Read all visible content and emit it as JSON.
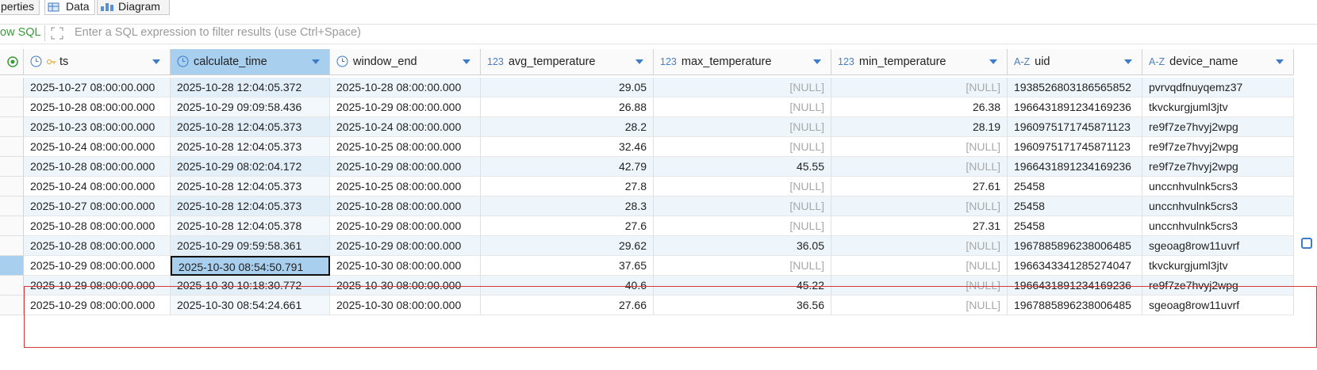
{
  "tabs": [
    "perties",
    "Data",
    "Diagram"
  ],
  "filter": {
    "label": "ow SQL",
    "placeholder": "Enter a SQL expression to filter results (use Ctrl+Space)"
  },
  "table": {
    "columns": [
      {
        "name": "ts"
      },
      {
        "name": "calculate_time"
      },
      {
        "name": "window_end"
      },
      {
        "name": "avg_temperature",
        "type_label": "123"
      },
      {
        "name": "max_temperature",
        "type_label": "123"
      },
      {
        "name": "min_temperature",
        "type_label": "123"
      },
      {
        "name": "uid",
        "type_label": "A-Z"
      },
      {
        "name": "device_name",
        "type_label": "A-Z"
      }
    ],
    "rows": [
      [
        "2025-10-27 08:00:00.000",
        "2025-10-28 12:04:05.372",
        "2025-10-28 08:00:00.000",
        "29.05",
        "[NULL]",
        "[NULL]",
        "1938526803186565852",
        "pvrvqdfnuyqemz37"
      ],
      [
        "2025-10-28 08:00:00.000",
        "2025-10-29 09:09:58.436",
        "2025-10-29 08:00:00.000",
        "26.88",
        "[NULL]",
        "26.38",
        "1966431891234169236",
        "tkvckurgjuml3jtv"
      ],
      [
        "2025-10-23 08:00:00.000",
        "2025-10-28 12:04:05.373",
        "2025-10-24 08:00:00.000",
        "28.2",
        "[NULL]",
        "28.19",
        "1960975171745871123",
        "re9f7ze7hvyj2wpg"
      ],
      [
        "2025-10-24 08:00:00.000",
        "2025-10-28 12:04:05.373",
        "2025-10-25 08:00:00.000",
        "32.46",
        "[NULL]",
        "[NULL]",
        "1960975171745871123",
        "re9f7ze7hvyj2wpg"
      ],
      [
        "2025-10-28 08:00:00.000",
        "2025-10-29 08:02:04.172",
        "2025-10-29 08:00:00.000",
        "42.79",
        "45.55",
        "[NULL]",
        "1966431891234169236",
        "re9f7ze7hvyj2wpg"
      ],
      [
        "2025-10-24 08:00:00.000",
        "2025-10-28 12:04:05.373",
        "2025-10-25 08:00:00.000",
        "27.8",
        "[NULL]",
        "27.61",
        "25458",
        "unccnhvulnk5crs3"
      ],
      [
        "2025-10-27 08:00:00.000",
        "2025-10-28 12:04:05.373",
        "2025-10-28 08:00:00.000",
        "28.3",
        "[NULL]",
        "[NULL]",
        "25458",
        "unccnhvulnk5crs3"
      ],
      [
        "2025-10-28 08:00:00.000",
        "2025-10-28 12:04:05.378",
        "2025-10-29 08:00:00.000",
        "27.6",
        "[NULL]",
        "27.31",
        "25458",
        "unccnhvulnk5crs3"
      ],
      [
        "2025-10-28 08:00:00.000",
        "2025-10-29 09:59:58.361",
        "2025-10-29 08:00:00.000",
        "29.62",
        "36.05",
        "[NULL]",
        "1967885896238006485",
        "sgeoag8row11uvrf"
      ],
      [
        "2025-10-29 08:00:00.000",
        "2025-10-30 08:54:50.791",
        "2025-10-30 08:00:00.000",
        "37.65",
        "[NULL]",
        "[NULL]",
        "1966343341285274047",
        "tkvckurgjuml3jtv"
      ],
      [
        "2025-10-29 08:00:00.000",
        "2025-10-30 10:18:30.772",
        "2025-10-30 08:00:00.000",
        "40.6",
        "45.22",
        "[NULL]",
        "1966431891234169236",
        "re9f7ze7hvyj2wpg"
      ],
      [
        "2025-10-29 08:00:00.000",
        "2025-10-30 08:54:24.661",
        "2025-10-30 08:00:00.000",
        "27.66",
        "36.56",
        "[NULL]",
        "1967885896238006485",
        "sgeoag8row11uvrf"
      ]
    ]
  }
}
